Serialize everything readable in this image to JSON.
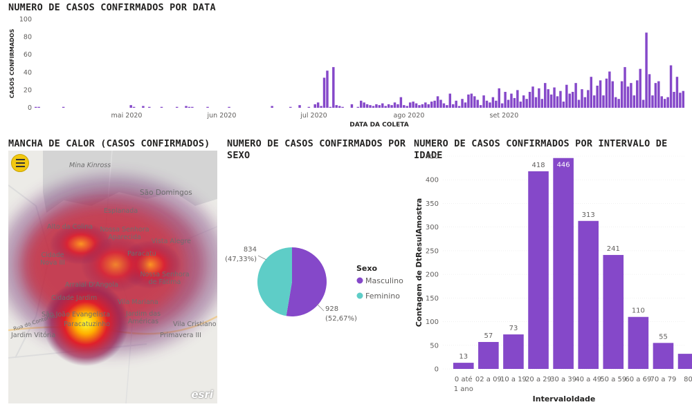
{
  "time_panel": {
    "title": "NUMERO DE CASOS CONFIRMADOS POR DATA"
  },
  "map_panel": {
    "title": "MANCHA DE CALOR (CASOS CONFIRMADOS)",
    "places": [
      {
        "label": "Mina Kinross"
      },
      {
        "label": "São Domingos"
      },
      {
        "label": "Esplanada"
      },
      {
        "label": "Alto da Colina"
      },
      {
        "label": "Nossa Senhora Aparecida"
      },
      {
        "label": "Vista Alegre"
      },
      {
        "label": "Paracatu"
      },
      {
        "label": "Cidade Nova III"
      },
      {
        "label": "Nossa Senhora de Fátima"
      },
      {
        "label": "Arraial D'Angola"
      },
      {
        "label": "Cidade Jardim"
      },
      {
        "label": "Vila Mariana"
      },
      {
        "label": "São João Evangelista"
      },
      {
        "label": "Paracatuzinho"
      },
      {
        "label": "Jardim das Américas"
      },
      {
        "label": "Vila Cristiano"
      },
      {
        "label": "Jardim Vitória"
      },
      {
        "label": "Primavera III"
      },
      {
        "label": "Rua do Contorno"
      }
    ],
    "attribution": "esri"
  },
  "sex_panel": {
    "title": "NUMERO DE CASOS CONFIRMADOS POR SEXO",
    "legend_title": "Sexo"
  },
  "age_panel": {
    "title": "NUMERO DE CASOS CONFIRMADOS POR INTERVALO DE IDADE"
  },
  "colors": {
    "bar": "#8548c9",
    "teal": "#5ecdc7",
    "axis_text": "#605e5c",
    "grid": "#e8e8e8"
  },
  "chart_data": [
    {
      "type": "bar",
      "title": "NUMERO DE CASOS CONFIRMADOS POR DATA",
      "xlabel": "DATA DA COLETA",
      "ylabel": "CASOS CONFIRMADOS",
      "ylim": [
        0,
        100
      ],
      "yticks": [
        0,
        20,
        40,
        60,
        80,
        100
      ],
      "x_start": "2020-04-01",
      "x_tick_labels": [
        {
          "date": "2020-05-01",
          "label": "mai 2020"
        },
        {
          "date": "2020-06-01",
          "label": "jun 2020"
        },
        {
          "date": "2020-07-01",
          "label": "jul 2020"
        },
        {
          "date": "2020-08-01",
          "label": "ago 2020"
        },
        {
          "date": "2020-09-01",
          "label": "set 2020"
        }
      ],
      "values": [
        1,
        1,
        0,
        0,
        0,
        0,
        0,
        0,
        0,
        1,
        0,
        0,
        0,
        0,
        0,
        0,
        0,
        0,
        0,
        0,
        0,
        0,
        0,
        0,
        0,
        0,
        0,
        0,
        0,
        0,
        0,
        3,
        1,
        0,
        0,
        2,
        0,
        1,
        0,
        0,
        0,
        1,
        0,
        0,
        0,
        0,
        1,
        0,
        0,
        2,
        1,
        1,
        0,
        0,
        0,
        0,
        1,
        0,
        0,
        0,
        0,
        0,
        0,
        1,
        0,
        0,
        0,
        0,
        0,
        0,
        0,
        0,
        0,
        0,
        0,
        0,
        0,
        2,
        0,
        0,
        0,
        0,
        0,
        1,
        0,
        0,
        3,
        0,
        0,
        1,
        0,
        4,
        6,
        2,
        34,
        42,
        1,
        46,
        3,
        2,
        1,
        0,
        0,
        4,
        0,
        1,
        8,
        6,
        4,
        3,
        2,
        4,
        3,
        5,
        2,
        4,
        3,
        6,
        4,
        12,
        3,
        2,
        6,
        7,
        5,
        3,
        4,
        6,
        4,
        7,
        8,
        13,
        9,
        5,
        3,
        16,
        4,
        8,
        2,
        10,
        6,
        15,
        16,
        13,
        9,
        3,
        14,
        8,
        6,
        12,
        8,
        22,
        5,
        18,
        9,
        16,
        11,
        20,
        7,
        14,
        10,
        18,
        24,
        12,
        22,
        10,
        28,
        21,
        15,
        23,
        13,
        19,
        7,
        26,
        16,
        18,
        28,
        9,
        21,
        12,
        20,
        35,
        14,
        25,
        31,
        14,
        33,
        41,
        30,
        12,
        10,
        30,
        46,
        24,
        28,
        14,
        31,
        44,
        9,
        85,
        38,
        14,
        28,
        30,
        13,
        10,
        12,
        48,
        18,
        35,
        17,
        19
      ],
      "series_name": ""
    },
    {
      "type": "pie",
      "title": "NUMERO DE CASOS CONFIRMADOS POR SEXO",
      "legend_title": "Sexo",
      "slices": [
        {
          "name": "Masculino",
          "value": 928,
          "label": "928",
          "pct": "(52,67%)",
          "color": "#8548c9"
        },
        {
          "name": "Feminino",
          "value": 834,
          "label": "834",
          "pct": "(47,33%)",
          "color": "#5ecdc7"
        }
      ]
    },
    {
      "type": "bar",
      "title": "NUMERO DE CASOS CONFIRMADOS POR INTERVALO DE IDADE",
      "xlabel": "IntervaloIdade",
      "ylabel": "Contagem de DtResulAmostra",
      "ylim": [
        0,
        450
      ],
      "yticks": [
        0,
        50,
        100,
        150,
        200,
        250,
        300,
        350,
        400,
        450
      ],
      "categories": [
        "0 até 1 ano",
        "02 a 09",
        "10 a 19",
        "20 a 29",
        "30 a 39",
        "40 a 49",
        "50 a 59",
        "60 a 69",
        "70 a 79",
        "80"
      ],
      "values": [
        13,
        57,
        73,
        418,
        446,
        313,
        241,
        110,
        55,
        32
      ],
      "data_labels": [
        "13",
        "57",
        "73",
        "418",
        "446",
        "313",
        "241",
        "110",
        "55",
        ""
      ]
    }
  ]
}
